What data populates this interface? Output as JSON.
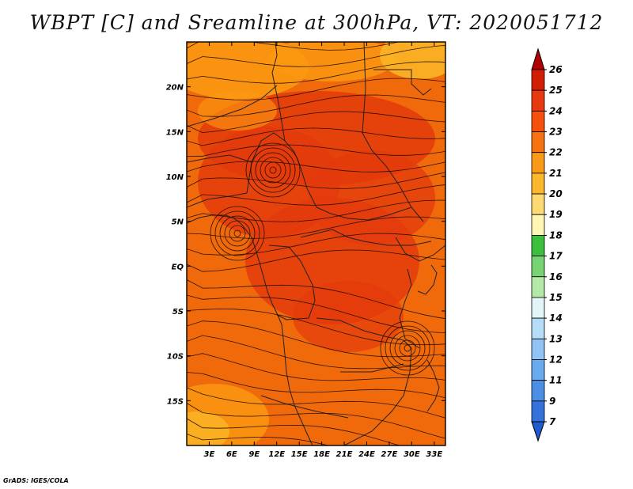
{
  "title": "WBPT [C] and Sreamline at 300hPa, VT: 2020051712",
  "credit": "GrADS: IGES/COLA",
  "map": {
    "lon_labels": [
      "3E",
      "6E",
      "9E",
      "12E",
      "15E",
      "18E",
      "21E",
      "24E",
      "27E",
      "30E",
      "33E"
    ],
    "lon_values": [
      3,
      6,
      9,
      12,
      15,
      18,
      21,
      24,
      27,
      30,
      33
    ],
    "lat_labels": [
      "20N",
      "15N",
      "10N",
      "5N",
      "EQ",
      "5S",
      "10S",
      "15S"
    ],
    "lat_values": [
      20,
      15,
      10,
      5,
      0,
      -5,
      -10,
      -15
    ],
    "lon_range": [
      0,
      34.5
    ],
    "lat_range": [
      -20,
      25
    ],
    "base_color": "#f06a0c",
    "intense_color": "#e33a0c",
    "warm_color": "#fb9a10",
    "cool_color": "#fbb526"
  },
  "colorbar": {
    "levels": [
      "26",
      "25",
      "24",
      "23",
      "22",
      "21",
      "20",
      "19",
      "18",
      "17",
      "16",
      "15",
      "14",
      "13",
      "12",
      "11",
      "9",
      "7"
    ],
    "colors": [
      "#b30000",
      "#d21e05",
      "#e8380f",
      "#f5500c",
      "#f77211",
      "#fb9a18",
      "#fbb72d",
      "#fdda71",
      "#fff6b4",
      "#3cbf3c",
      "#78d373",
      "#b4e9a8",
      "#e4f5f8",
      "#b5ddf8",
      "#91c4f4",
      "#6aabf0",
      "#4a8fe4",
      "#3471db",
      "#1e5bce"
    ]
  }
}
